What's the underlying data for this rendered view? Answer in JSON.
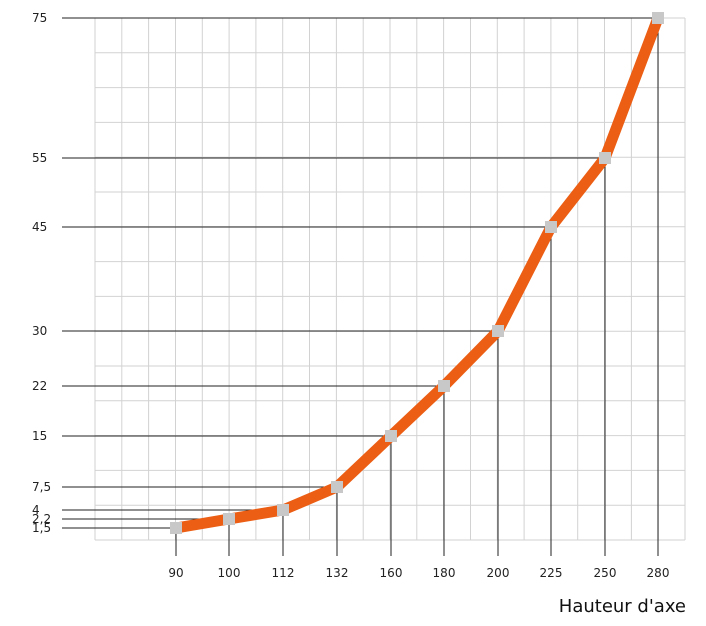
{
  "chart_data": {
    "type": "line",
    "title": "",
    "xlabel": "Hauteur d'axe",
    "ylabel": "",
    "x_labels": [
      "90",
      "100",
      "112",
      "132",
      "160",
      "180",
      "200",
      "225",
      "250",
      "280"
    ],
    "y_labels": [
      "1,5",
      "2,2",
      "4",
      "7,5",
      "15",
      "22",
      "30",
      "45",
      "55",
      "75"
    ],
    "series": [
      {
        "values": [
          1.5,
          2.2,
          4,
          7.5,
          15,
          22,
          30,
          45,
          55,
          75
        ]
      }
    ],
    "x_scale": "categorical",
    "y_scale": "nonlinear (labels at values only)",
    "ylim": [
      1.5,
      75
    ],
    "grid": true,
    "legend": "none",
    "colors": {
      "line": "#eb5e14",
      "marker": "#c8c8c8",
      "grid": "#d2d2d2",
      "guide": "#222222"
    }
  }
}
